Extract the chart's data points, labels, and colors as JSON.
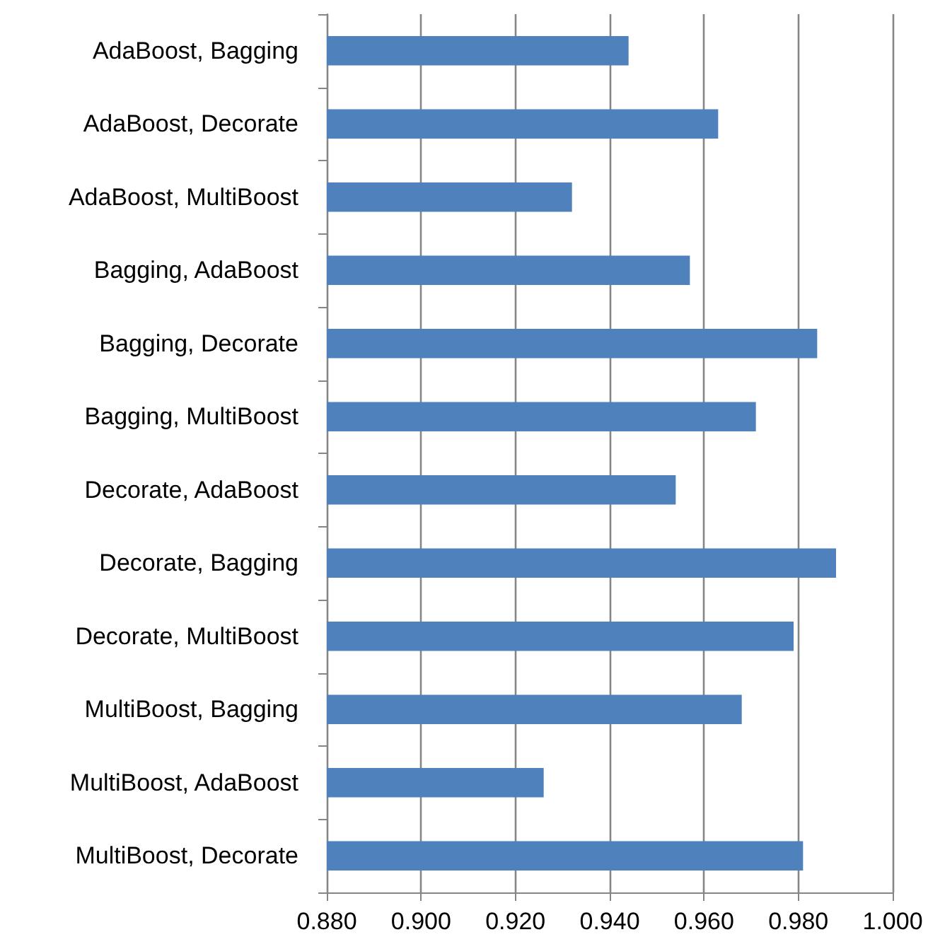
{
  "chart_data": {
    "type": "bar",
    "orientation": "horizontal",
    "categories": [
      "AdaBoost, Bagging",
      "AdaBoost, Decorate",
      "AdaBoost, MultiBoost",
      "Bagging, AdaBoost",
      "Bagging, Decorate",
      "Bagging, MultiBoost",
      "Decorate, AdaBoost",
      "Decorate, Bagging",
      "Decorate, MultiBoost",
      "MultiBoost, Bagging",
      "MultiBoost, AdaBoost",
      "MultiBoost, Decorate"
    ],
    "values": [
      0.944,
      0.963,
      0.932,
      0.957,
      0.984,
      0.971,
      0.954,
      0.988,
      0.979,
      0.968,
      0.926,
      0.981
    ],
    "color": "#4f81bd",
    "xlim": [
      0.88,
      1.0
    ],
    "xticks": [
      {
        "value": 0.88,
        "label": "0.880"
      },
      {
        "value": 0.9,
        "label": "0.900"
      },
      {
        "value": 0.92,
        "label": "0.920"
      },
      {
        "value": 0.94,
        "label": "0.940"
      },
      {
        "value": 0.96,
        "label": "0.960"
      },
      {
        "value": 0.98,
        "label": "0.980"
      },
      {
        "value": 1.0,
        "label": "1.000"
      }
    ],
    "grid": "x"
  }
}
